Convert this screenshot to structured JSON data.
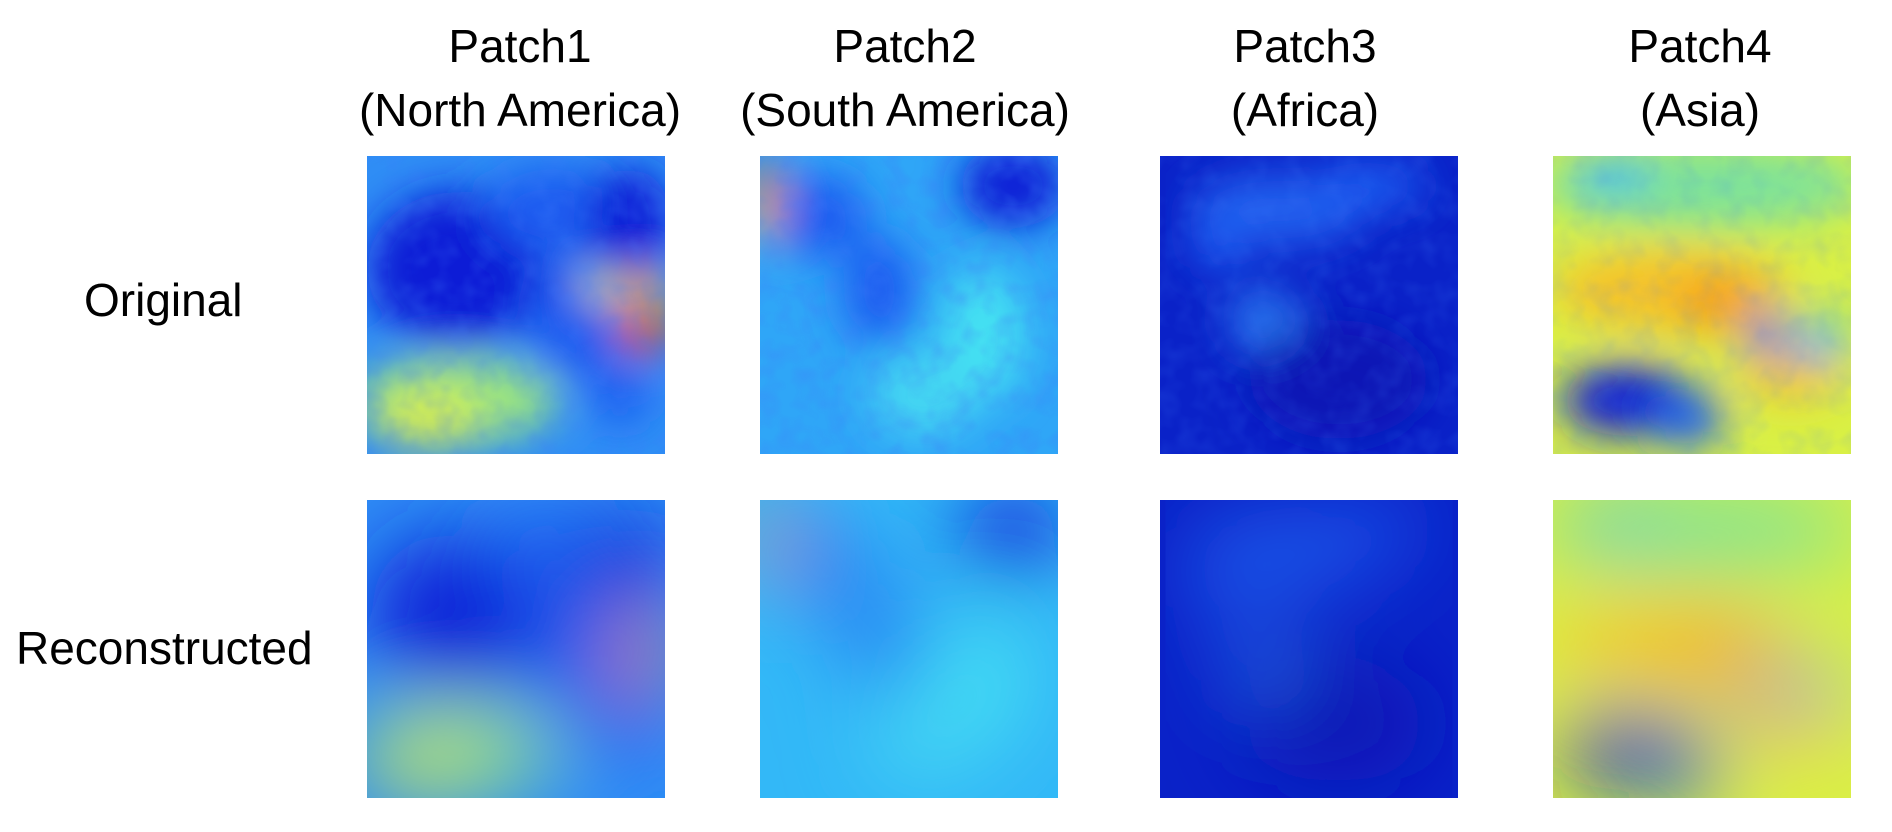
{
  "columns": [
    {
      "title": "Patch1",
      "region": "(North America)"
    },
    {
      "title": "Patch2",
      "region": "(South America)"
    },
    {
      "title": "Patch3",
      "region": "(Africa)"
    },
    {
      "title": "Patch4",
      "region": "(Asia)"
    }
  ],
  "rows": [
    {
      "label": "Original"
    },
    {
      "label": "Reconstructed"
    }
  ],
  "colormap": {
    "dark_blue": "#0a1fd6",
    "blue": "#1b5cf0",
    "light_blue": "#2fb4f7",
    "cyan": "#45e2f2",
    "green_yellow": "#b9f06a",
    "yellow": "#f5ee2c",
    "orange": "#f6a21d",
    "red": "#dd2a10"
  }
}
